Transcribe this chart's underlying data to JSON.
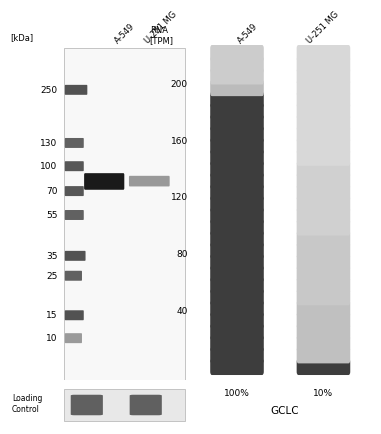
{
  "kda_labels": [
    "250",
    "130",
    "100",
    "70",
    "55",
    "35",
    "25",
    "15",
    "10"
  ],
  "wb_bg": "#f2f2f2",
  "wb_band_color_a549": "#1a1a1a",
  "wb_band_color_u251": "#999999",
  "lc_bg": "#e0e0e0",
  "lc_band_color": "#555555",
  "rna_ylabel": "RNA\n[TPM]",
  "rna_col1_label": "A-549",
  "rna_col2_label": "U-251 MG",
  "rna_yticks": [
    40,
    80,
    120,
    160,
    200
  ],
  "rna_col1_pct": "100%",
  "rna_col2_pct": "10%",
  "gene_label": "GCLC",
  "loading_label": "Loading\nControl",
  "n_segs": 28,
  "a549_colors": [
    "#cccccc",
    "#cccccc",
    "#cccccc",
    "#bbbbbb",
    "#3d3d3d",
    "#3d3d3d",
    "#3d3d3d",
    "#3d3d3d",
    "#3d3d3d",
    "#3d3d3d",
    "#3d3d3d",
    "#3d3d3d",
    "#3d3d3d",
    "#3d3d3d",
    "#3d3d3d",
    "#3d3d3d",
    "#3d3d3d",
    "#3d3d3d",
    "#3d3d3d",
    "#3d3d3d",
    "#3d3d3d",
    "#3d3d3d",
    "#3d3d3d",
    "#3d3d3d",
    "#3d3d3d",
    "#3d3d3d",
    "#3d3d3d",
    "#3d3d3d"
  ],
  "u251_colors": [
    "#d8d8d8",
    "#d8d8d8",
    "#d8d8d8",
    "#d8d8d8",
    "#d8d8d8",
    "#d8d8d8",
    "#d8d8d8",
    "#d8d8d8",
    "#d8d8d8",
    "#d8d8d8",
    "#d0d0d0",
    "#d0d0d0",
    "#d0d0d0",
    "#d0d0d0",
    "#d0d0d0",
    "#d0d0d0",
    "#c8c8c8",
    "#c8c8c8",
    "#c8c8c8",
    "#c8c8c8",
    "#c8c8c8",
    "#c8c8c8",
    "#c0c0c0",
    "#c0c0c0",
    "#c0c0c0",
    "#c0c0c0",
    "#c0c0c0",
    "#3d3d3d"
  ]
}
